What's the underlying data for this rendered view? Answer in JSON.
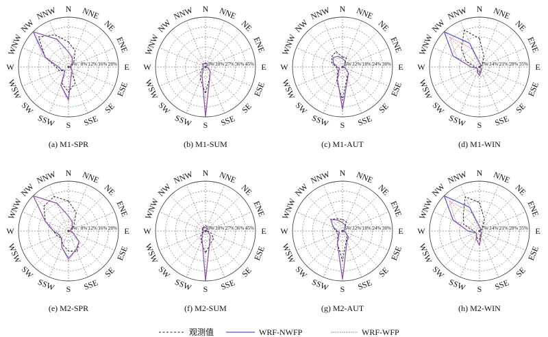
{
  "directions": [
    "N",
    "NNE",
    "NE",
    "ENE",
    "E",
    "ESE",
    "SE",
    "SSE",
    "S",
    "SSW",
    "SW",
    "WSW",
    "W",
    "WNW",
    "NW",
    "NNW"
  ],
  "colors": {
    "obs": "#222222",
    "nwfp": "#5a4fcf",
    "wfp": "#e0505a",
    "grid": "#444444"
  },
  "legend": [
    {
      "key": "obs",
      "label": "观测值"
    },
    {
      "key": "nwfp",
      "label": "WRF-NWFP"
    },
    {
      "key": "wfp",
      "label": "WRF-WFP"
    }
  ],
  "chart_data": [
    {
      "type": "radar",
      "title": "(a) M1-SPR",
      "ticks": [
        "4%",
        "8%",
        "12%",
        "16%",
        "20%"
      ],
      "rmax": 20,
      "series": [
        {
          "key": "obs",
          "values": [
            10,
            7,
            3,
            1,
            1,
            1,
            2,
            7,
            10,
            7,
            2,
            4,
            5,
            10,
            17,
            14
          ]
        },
        {
          "key": "nwfp",
          "values": [
            6,
            4,
            2,
            1,
            0.5,
            1,
            2,
            3,
            13,
            8,
            2,
            3,
            4,
            10,
            20,
            12
          ]
        },
        {
          "key": "wfp",
          "values": [
            6,
            4,
            2,
            1,
            0.5,
            1,
            2,
            3,
            14,
            8,
            2,
            3,
            4,
            11,
            20,
            12
          ]
        }
      ]
    },
    {
      "type": "radar",
      "title": "(b) M1-SUM",
      "ticks": [
        "9%",
        "18%",
        "27%",
        "36%",
        "45%"
      ],
      "rmax": 45,
      "series": [
        {
          "key": "obs",
          "values": [
            4,
            3,
            2,
            1,
            1,
            3,
            6,
            10,
            24,
            12,
            6,
            3,
            2,
            2,
            3,
            3
          ]
        },
        {
          "key": "nwfp",
          "values": [
            3,
            3,
            2,
            1,
            1,
            3,
            6,
            10,
            45,
            8,
            3,
            2,
            2,
            2,
            4,
            3
          ]
        },
        {
          "key": "wfp",
          "values": [
            3,
            3,
            2,
            1,
            1,
            3,
            6,
            10,
            44,
            8,
            3,
            2,
            2,
            2,
            4,
            3
          ]
        }
      ]
    },
    {
      "type": "radar",
      "title": "(c) M1-AUT",
      "ticks": [
        "6%",
        "12%",
        "18%",
        "24%",
        "30%"
      ],
      "rmax": 30,
      "series": [
        {
          "key": "obs",
          "values": [
            6,
            6,
            2,
            1,
            1,
            2,
            5,
            7,
            20,
            9,
            4,
            3,
            4,
            7,
            9,
            10
          ]
        },
        {
          "key": "nwfp",
          "values": [
            5,
            4,
            2,
            1,
            0.5,
            2,
            5,
            8,
            25,
            8,
            3,
            2,
            3,
            6,
            8,
            7
          ]
        },
        {
          "key": "wfp",
          "values": [
            5,
            4,
            2,
            1,
            0.5,
            2,
            5,
            8,
            27,
            8,
            3,
            2,
            3,
            6,
            8,
            7
          ]
        }
      ]
    },
    {
      "type": "radar",
      "title": "(d) M1-WIN",
      "ticks": [
        "7%",
        "14%",
        "21%",
        "28%",
        "35%"
      ],
      "rmax": 35,
      "series": [
        {
          "key": "obs",
          "values": [
            20,
            8,
            3,
            1,
            1,
            1,
            2,
            2,
            4,
            3,
            2,
            2,
            3,
            10,
            18,
            28
          ]
        },
        {
          "key": "nwfp",
          "values": [
            3,
            2,
            1,
            0.5,
            0.5,
            1,
            2,
            3,
            6,
            4,
            2,
            2,
            6,
            20,
            35,
            18
          ]
        },
        {
          "key": "wfp",
          "values": [
            3,
            2,
            1,
            0.5,
            0.5,
            1,
            2,
            3,
            6,
            4,
            2,
            2,
            6,
            17,
            30,
            14
          ]
        }
      ]
    },
    {
      "type": "radar",
      "title": "(e) M2-SPR",
      "ticks": [
        "4%",
        "8%",
        "12%",
        "16%",
        "20%"
      ],
      "rmax": 20,
      "series": [
        {
          "key": "obs",
          "values": [
            12,
            8,
            3,
            1,
            1,
            2,
            6,
            9,
            8,
            6,
            4,
            5,
            6,
            10,
            14,
            15
          ]
        },
        {
          "key": "nwfp",
          "values": [
            6,
            4,
            2,
            1,
            0.5,
            2,
            6,
            8,
            11,
            7,
            4,
            4,
            6,
            10,
            20,
            12
          ]
        },
        {
          "key": "wfp",
          "values": [
            6,
            4,
            2,
            1,
            0.5,
            2,
            6,
            8,
            12,
            7,
            4,
            4,
            5,
            10,
            20,
            12
          ]
        }
      ]
    },
    {
      "type": "radar",
      "title": "(f) M2-SUM",
      "ticks": [
        "9%",
        "18%",
        "27%",
        "36%",
        "45%"
      ],
      "rmax": 45,
      "series": [
        {
          "key": "obs",
          "values": [
            5,
            4,
            2,
            1,
            2,
            6,
            10,
            12,
            20,
            10,
            6,
            3,
            2,
            3,
            4,
            4
          ]
        },
        {
          "key": "nwfp",
          "values": [
            3,
            3,
            2,
            1,
            1,
            3,
            6,
            10,
            45,
            8,
            4,
            2,
            2,
            2,
            4,
            3
          ]
        },
        {
          "key": "wfp",
          "values": [
            3,
            3,
            2,
            1,
            1,
            3,
            6,
            10,
            44,
            8,
            4,
            2,
            2,
            2,
            4,
            3
          ]
        }
      ]
    },
    {
      "type": "radar",
      "title": "(g) M2-AUT",
      "ticks": [
        "6%",
        "12%",
        "18%",
        "24%",
        "30%"
      ],
      "rmax": 30,
      "series": [
        {
          "key": "obs",
          "values": [
            7,
            6,
            2,
            1,
            1,
            2,
            4,
            6,
            18,
            8,
            4,
            3,
            4,
            6,
            10,
            8
          ]
        },
        {
          "key": "nwfp",
          "values": [
            5,
            4,
            2,
            1,
            0.5,
            2,
            5,
            7,
            29,
            8,
            3,
            2,
            3,
            6,
            10,
            7
          ]
        },
        {
          "key": "wfp",
          "values": [
            5,
            4,
            2,
            1,
            0.5,
            2,
            5,
            7,
            29,
            8,
            3,
            2,
            3,
            6,
            10,
            7
          ]
        }
      ]
    },
    {
      "type": "radar",
      "title": "(h) M2-WIN",
      "ticks": [
        "7%",
        "14%",
        "21%",
        "28%",
        "35%"
      ],
      "rmax": 35,
      "series": [
        {
          "key": "obs",
          "values": [
            20,
            9,
            3,
            1,
            1,
            1,
            2,
            2,
            6,
            5,
            3,
            3,
            4,
            12,
            16,
            26
          ]
        },
        {
          "key": "nwfp",
          "values": [
            3,
            2,
            1,
            0.5,
            0.5,
            1,
            2,
            3,
            10,
            6,
            3,
            3,
            8,
            20,
            35,
            18
          ]
        },
        {
          "key": "wfp",
          "values": [
            3,
            2,
            1,
            0.5,
            0.5,
            1,
            2,
            3,
            10,
            6,
            3,
            3,
            8,
            18,
            30,
            14
          ]
        }
      ]
    }
  ]
}
